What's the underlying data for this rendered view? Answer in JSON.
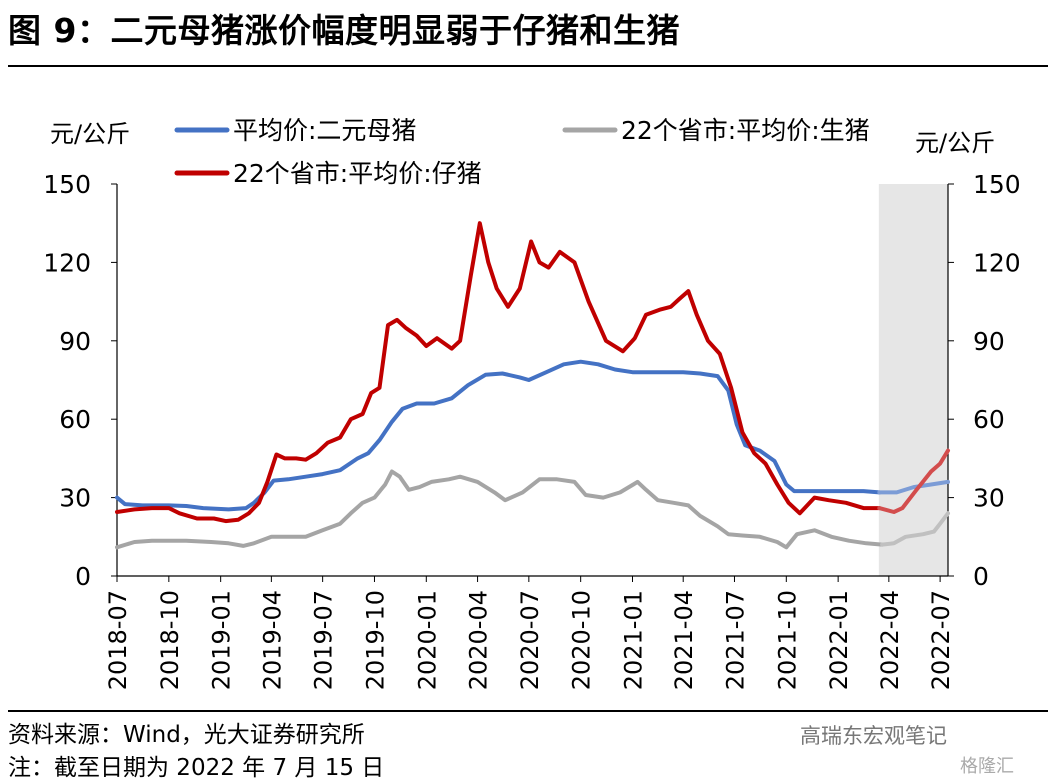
{
  "header": {
    "title": "图 9：二元母猪涨价幅度明显弱于仔猪和生猪"
  },
  "footer": {
    "source": "资料来源：Wind，光大证券研究所",
    "note": "注：截至日期为 2022 年 7 月 15 日",
    "watermark": "高瑞东宏观笔记",
    "watermark2": "格隆汇"
  },
  "chart_data": {
    "type": "line",
    "ylabel_left": "元/公斤",
    "ylabel_right": "元/公斤",
    "ylim": [
      0,
      150
    ],
    "yticks": [
      "0",
      "30",
      "60",
      "90",
      "120",
      "150"
    ],
    "xticks": [
      "2018-07",
      "2018-10",
      "2019-01",
      "2019-04",
      "2019-07",
      "2019-10",
      "2020-01",
      "2020-04",
      "2020-07",
      "2020-10",
      "2021-01",
      "2021-04",
      "2021-07",
      "2021-10",
      "2022-01",
      "2022-04",
      "2022-07"
    ],
    "x_domain": [
      "2018-07-01",
      "2022-07-15"
    ],
    "highlight_range": [
      "2022-04-01",
      "2022-07-15"
    ],
    "grid": false,
    "legend_placement": "top",
    "series": [
      {
        "name": "平均价:二元母猪",
        "color": "#4472C4",
        "points": [
          [
            "2018-07-01",
            30
          ],
          [
            "2018-07-15",
            27.5
          ],
          [
            "2018-08-15",
            27
          ],
          [
            "2018-10-01",
            27
          ],
          [
            "2018-11-01",
            26.8
          ],
          [
            "2018-12-01",
            26
          ],
          [
            "2019-01-15",
            25.5
          ],
          [
            "2019-02-15",
            26
          ],
          [
            "2019-03-01",
            28
          ],
          [
            "2019-03-20",
            32
          ],
          [
            "2019-04-05",
            36.5
          ],
          [
            "2019-05-01",
            37
          ],
          [
            "2019-06-01",
            38
          ],
          [
            "2019-07-01",
            39
          ],
          [
            "2019-08-01",
            40.5
          ],
          [
            "2019-09-01",
            45
          ],
          [
            "2019-09-20",
            47
          ],
          [
            "2019-10-10",
            52
          ],
          [
            "2019-11-01",
            59
          ],
          [
            "2019-11-20",
            64
          ],
          [
            "2019-12-15",
            66
          ],
          [
            "2020-01-15",
            66
          ],
          [
            "2020-02-15",
            68
          ],
          [
            "2020-03-15",
            73
          ],
          [
            "2020-04-15",
            77
          ],
          [
            "2020-05-15",
            77.5
          ],
          [
            "2020-06-15",
            76
          ],
          [
            "2020-07-01",
            75
          ],
          [
            "2020-08-01",
            78
          ],
          [
            "2020-09-01",
            81
          ],
          [
            "2020-10-01",
            82
          ],
          [
            "2020-11-01",
            81
          ],
          [
            "2020-12-01",
            79
          ],
          [
            "2021-01-01",
            78
          ],
          [
            "2021-02-01",
            78
          ],
          [
            "2021-03-01",
            78
          ],
          [
            "2021-04-01",
            78
          ],
          [
            "2021-05-01",
            77.5
          ],
          [
            "2021-06-01",
            76.5
          ],
          [
            "2021-06-20",
            71
          ],
          [
            "2021-07-05",
            58
          ],
          [
            "2021-07-20",
            50
          ],
          [
            "2021-08-15",
            48
          ],
          [
            "2021-09-10",
            44
          ],
          [
            "2021-10-01",
            35
          ],
          [
            "2021-10-15",
            32.5
          ],
          [
            "2021-11-15",
            32.5
          ],
          [
            "2021-12-15",
            32.5
          ],
          [
            "2022-01-15",
            32.5
          ],
          [
            "2022-02-15",
            32.5
          ],
          [
            "2022-03-15",
            32
          ],
          [
            "2022-04-15",
            32
          ],
          [
            "2022-05-15",
            34
          ],
          [
            "2022-06-15",
            35
          ],
          [
            "2022-07-15",
            36
          ]
        ]
      },
      {
        "name": "22个省市:平均价:生猪",
        "color": "#A5A5A5",
        "points": [
          [
            "2018-07-01",
            11
          ],
          [
            "2018-08-01",
            13
          ],
          [
            "2018-09-01",
            13.5
          ],
          [
            "2018-10-01",
            13.5
          ],
          [
            "2018-11-01",
            13.5
          ],
          [
            "2018-12-15",
            13
          ],
          [
            "2019-01-15",
            12.5
          ],
          [
            "2019-02-10",
            11.5
          ],
          [
            "2019-03-01",
            12.5
          ],
          [
            "2019-04-01",
            15
          ],
          [
            "2019-05-01",
            15
          ],
          [
            "2019-06-01",
            15
          ],
          [
            "2019-07-01",
            17.5
          ],
          [
            "2019-08-01",
            20
          ],
          [
            "2019-08-20",
            24
          ],
          [
            "2019-09-10",
            28
          ],
          [
            "2019-10-01",
            30
          ],
          [
            "2019-10-20",
            35
          ],
          [
            "2019-11-01",
            40
          ],
          [
            "2019-11-15",
            38
          ],
          [
            "2019-12-01",
            33
          ],
          [
            "2019-12-20",
            34
          ],
          [
            "2020-01-10",
            36
          ],
          [
            "2020-02-10",
            37
          ],
          [
            "2020-03-01",
            38
          ],
          [
            "2020-04-01",
            36
          ],
          [
            "2020-05-01",
            32
          ],
          [
            "2020-05-20",
            29
          ],
          [
            "2020-06-20",
            32
          ],
          [
            "2020-07-20",
            37
          ],
          [
            "2020-08-20",
            37
          ],
          [
            "2020-09-20",
            36
          ],
          [
            "2020-10-10",
            31
          ],
          [
            "2020-11-10",
            30
          ],
          [
            "2020-12-10",
            32
          ],
          [
            "2021-01-10",
            36
          ],
          [
            "2021-01-25",
            33
          ],
          [
            "2021-02-15",
            29
          ],
          [
            "2021-03-15",
            28
          ],
          [
            "2021-04-10",
            27
          ],
          [
            "2021-05-01",
            23
          ],
          [
            "2021-06-01",
            19
          ],
          [
            "2021-06-20",
            16
          ],
          [
            "2021-07-15",
            15.5
          ],
          [
            "2021-08-15",
            15
          ],
          [
            "2021-09-15",
            13
          ],
          [
            "2021-10-01",
            11
          ],
          [
            "2021-10-20",
            16
          ],
          [
            "2021-11-20",
            17.5
          ],
          [
            "2021-12-20",
            15
          ],
          [
            "2022-01-20",
            13.5
          ],
          [
            "2022-02-20",
            12.5
          ],
          [
            "2022-03-20",
            12
          ],
          [
            "2022-04-10",
            12.5
          ],
          [
            "2022-05-01",
            15
          ],
          [
            "2022-06-01",
            16
          ],
          [
            "2022-06-20",
            17
          ],
          [
            "2022-07-01",
            20
          ],
          [
            "2022-07-15",
            24
          ]
        ]
      },
      {
        "name": "22个省市:平均价:仔猪",
        "color": "#C00000",
        "points": [
          [
            "2018-07-01",
            24.5
          ],
          [
            "2018-08-01",
            25.5
          ],
          [
            "2018-09-01",
            26
          ],
          [
            "2018-10-01",
            26
          ],
          [
            "2018-10-20",
            24
          ],
          [
            "2018-11-20",
            22
          ],
          [
            "2018-12-20",
            22
          ],
          [
            "2019-01-10",
            21
          ],
          [
            "2019-02-01",
            21.5
          ],
          [
            "2019-02-20",
            24
          ],
          [
            "2019-03-10",
            28
          ],
          [
            "2019-03-25",
            36
          ],
          [
            "2019-04-10",
            46.5
          ],
          [
            "2019-04-25",
            45
          ],
          [
            "2019-05-15",
            45
          ],
          [
            "2019-06-01",
            44.5
          ],
          [
            "2019-06-20",
            47
          ],
          [
            "2019-07-10",
            51
          ],
          [
            "2019-08-01",
            53
          ],
          [
            "2019-08-20",
            60
          ],
          [
            "2019-09-10",
            62
          ],
          [
            "2019-09-25",
            70
          ],
          [
            "2019-10-10",
            72
          ],
          [
            "2019-10-25",
            96
          ],
          [
            "2019-11-10",
            98
          ],
          [
            "2019-11-25",
            95
          ],
          [
            "2019-12-15",
            92
          ],
          [
            "2020-01-01",
            88
          ],
          [
            "2020-01-20",
            91
          ],
          [
            "2020-02-15",
            87
          ],
          [
            "2020-03-01",
            90
          ],
          [
            "2020-03-20",
            115
          ],
          [
            "2020-04-05",
            135
          ],
          [
            "2020-04-20",
            120
          ],
          [
            "2020-05-05",
            110
          ],
          [
            "2020-05-25",
            103
          ],
          [
            "2020-06-15",
            110
          ],
          [
            "2020-07-05",
            128
          ],
          [
            "2020-07-20",
            120
          ],
          [
            "2020-08-05",
            118
          ],
          [
            "2020-08-25",
            124
          ],
          [
            "2020-09-20",
            120
          ],
          [
            "2020-10-15",
            105
          ],
          [
            "2020-11-15",
            90
          ],
          [
            "2020-12-15",
            86
          ],
          [
            "2021-01-05",
            91
          ],
          [
            "2021-01-25",
            100
          ],
          [
            "2021-02-20",
            102
          ],
          [
            "2021-03-10",
            103
          ],
          [
            "2021-03-25",
            106
          ],
          [
            "2021-04-10",
            109
          ],
          [
            "2021-04-25",
            100
          ],
          [
            "2021-05-15",
            90
          ],
          [
            "2021-06-05",
            85
          ],
          [
            "2021-06-25",
            72
          ],
          [
            "2021-07-15",
            55
          ],
          [
            "2021-08-05",
            47
          ],
          [
            "2021-08-25",
            43
          ],
          [
            "2021-09-15",
            35
          ],
          [
            "2021-10-05",
            28
          ],
          [
            "2021-10-25",
            24
          ],
          [
            "2021-11-20",
            30
          ],
          [
            "2021-12-15",
            29
          ],
          [
            "2022-01-15",
            28
          ],
          [
            "2022-02-15",
            26
          ],
          [
            "2022-03-15",
            26
          ],
          [
            "2022-04-10",
            24.5
          ],
          [
            "2022-04-25",
            26
          ],
          [
            "2022-05-20",
            33
          ],
          [
            "2022-06-15",
            40
          ],
          [
            "2022-07-01",
            43
          ],
          [
            "2022-07-15",
            48
          ]
        ]
      }
    ]
  }
}
